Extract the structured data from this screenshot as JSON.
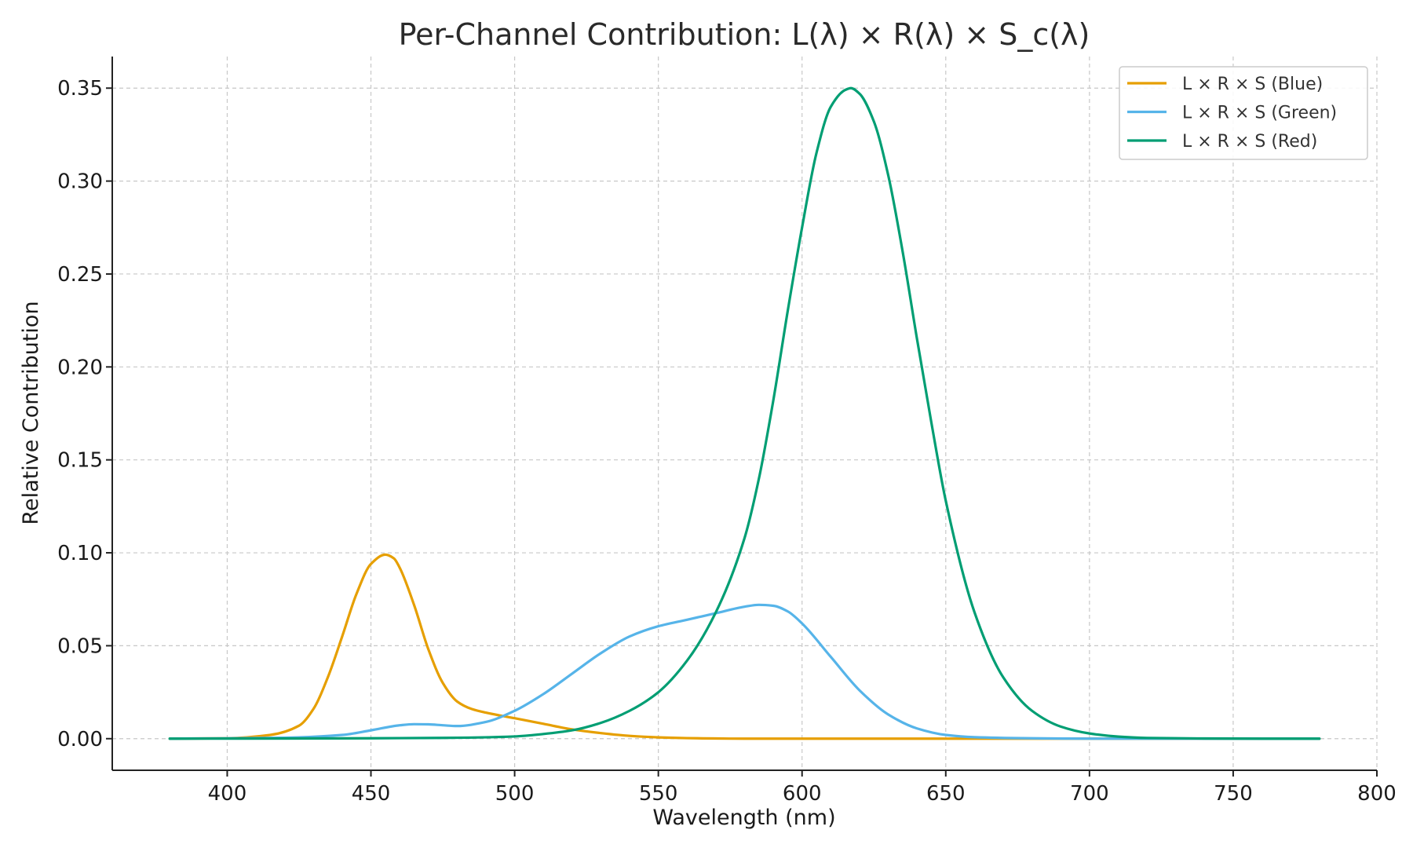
{
  "chart_data": {
    "type": "line",
    "title": "Per-Channel Contribution: L(λ) × R(λ) × S_c(λ)",
    "xlabel": "Wavelength (nm)",
    "ylabel": "Relative Contribution",
    "xlim": [
      360,
      800
    ],
    "ylim": [
      -0.017,
      0.367
    ],
    "xticks": [
      400,
      450,
      500,
      550,
      600,
      650,
      700,
      750,
      800
    ],
    "xtick_labels": [
      "400",
      "450",
      "500",
      "550",
      "600",
      "650",
      "700",
      "750",
      "800"
    ],
    "yticks": [
      0.0,
      0.05,
      0.1,
      0.15,
      0.2,
      0.25,
      0.3,
      0.35
    ],
    "ytick_labels": [
      "0.00",
      "0.05",
      "0.10",
      "0.15",
      "0.20",
      "0.25",
      "0.30",
      "0.35"
    ],
    "grid": true,
    "legend_position": "top-right",
    "series": [
      {
        "name": "L × R × S (Blue)",
        "color": "#E69F00",
        "x": [
          380,
          400,
          415,
          425,
          430,
          435,
          440,
          445,
          450,
          455,
          458,
          460,
          465,
          470,
          475,
          480,
          485,
          490,
          500,
          510,
          520,
          530,
          540,
          550,
          560,
          570,
          580,
          600,
          650,
          700,
          750,
          780
        ],
        "y": [
          0.0,
          0.0002,
          0.002,
          0.007,
          0.016,
          0.033,
          0.055,
          0.078,
          0.094,
          0.099,
          0.097,
          0.092,
          0.072,
          0.048,
          0.03,
          0.02,
          0.016,
          0.014,
          0.011,
          0.008,
          0.005,
          0.003,
          0.0015,
          0.0007,
          0.0003,
          0.0001,
          0.0,
          0.0,
          0.0,
          0.0,
          0.0,
          0.0
        ]
      },
      {
        "name": "L × R × S (Green)",
        "color": "#56B4E9",
        "x": [
          380,
          420,
          440,
          450,
          460,
          465,
          470,
          475,
          480,
          490,
          500,
          510,
          520,
          530,
          540,
          550,
          560,
          570,
          580,
          585,
          590,
          595,
          600,
          610,
          620,
          630,
          640,
          650,
          660,
          680,
          700,
          750,
          780
        ],
        "y": [
          0.0,
          0.0005,
          0.002,
          0.0045,
          0.0072,
          0.0078,
          0.0077,
          0.0072,
          0.0068,
          0.009,
          0.015,
          0.024,
          0.035,
          0.046,
          0.055,
          0.0605,
          0.064,
          0.0675,
          0.071,
          0.072,
          0.0715,
          0.0685,
          0.062,
          0.044,
          0.026,
          0.013,
          0.0055,
          0.002,
          0.0008,
          0.0002,
          0.0,
          0.0,
          0.0
        ]
      },
      {
        "name": "L × R × S (Red)",
        "color": "#009E73",
        "x": [
          380,
          450,
          480,
          500,
          510,
          520,
          530,
          540,
          550,
          560,
          570,
          580,
          585,
          590,
          595,
          600,
          605,
          610,
          615,
          617,
          620,
          625,
          630,
          635,
          640,
          645,
          650,
          660,
          670,
          680,
          690,
          700,
          710,
          720,
          740,
          760,
          780
        ],
        "y": [
          0.0,
          0.0002,
          0.0005,
          0.0012,
          0.0025,
          0.0045,
          0.0085,
          0.015,
          0.025,
          0.042,
          0.068,
          0.108,
          0.14,
          0.182,
          0.23,
          0.275,
          0.315,
          0.34,
          0.349,
          0.35,
          0.347,
          0.332,
          0.303,
          0.262,
          0.215,
          0.17,
          0.128,
          0.068,
          0.033,
          0.015,
          0.0065,
          0.0028,
          0.0011,
          0.0004,
          0.0001,
          0.0,
          0.0
        ]
      }
    ]
  }
}
